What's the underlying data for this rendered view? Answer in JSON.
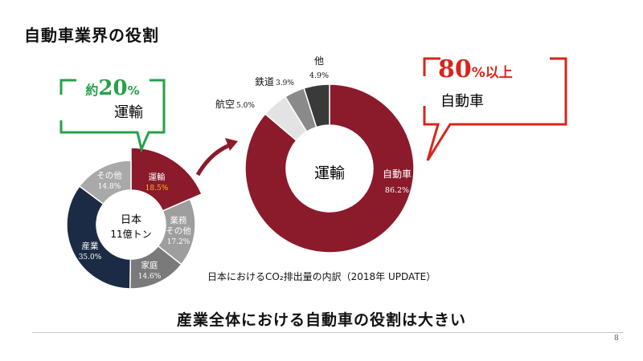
{
  "header": {
    "title": "自動車業界の役割"
  },
  "footer": {
    "subtitle": "産業全体における自動車の役割は大きい",
    "page_number": "8"
  },
  "colors": {
    "accent_red": "#8b1a2b",
    "callout_green": "#27a04a",
    "callout_red": "#d6261a",
    "navy": "#1b2b45"
  },
  "left_chart": {
    "center_line1": "日本",
    "center_line2": "11億トン",
    "callout_prefix": "約",
    "callout_number": "20",
    "callout_unit": "%",
    "callout_label": "運輸"
  },
  "right_chart": {
    "center_label": "運輸",
    "callout_number": "80",
    "callout_suffix": "%以上",
    "callout_label": "自動車",
    "caption": "日本におけるCO₂排出量の内訳（2018年 UPDATE）"
  },
  "chart_data": [
    {
      "type": "pie",
      "segments": [
        {
          "label": "運輸",
          "value_label": "18.5%",
          "value": 18.5,
          "color": "#8b1a2b"
        },
        {
          "label": "業務\nその他",
          "value_label": "17.2%",
          "value": 17.2,
          "color": "#9e9e9e"
        },
        {
          "label": "家庭",
          "value_label": "14.6%",
          "value": 14.6,
          "color": "#7a7a7a"
        },
        {
          "label": "産業",
          "value_label": "35.0%",
          "value": 35.0,
          "color": "#1b2b45"
        },
        {
          "label": "その他",
          "value_label": "14.8%",
          "value": 14.8,
          "color": "#a9a9a9"
        }
      ]
    },
    {
      "type": "pie",
      "segments": [
        {
          "label": "自動車",
          "value_label": "86.2%",
          "value": 86.2,
          "color": "#8b1a2b"
        },
        {
          "label": "航空",
          "value_label": "5.0%",
          "value": 5.0,
          "color": "#e3e3e3"
        },
        {
          "label": "鉄道",
          "value_label": "3.9%",
          "value": 3.9,
          "color": "#8a8a8a"
        },
        {
          "label": "他",
          "value_label": "4.9%",
          "value": 4.9,
          "color": "#3a3a3a"
        }
      ]
    }
  ]
}
